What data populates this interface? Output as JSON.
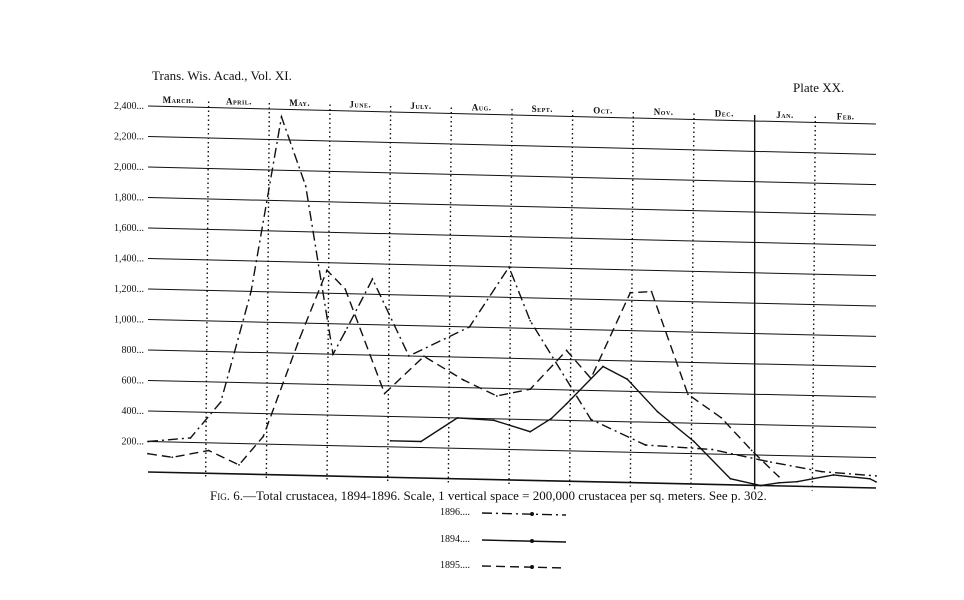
{
  "header": {
    "journal": "Trans. Wis. Acad., Vol. XI.",
    "plate": "Plate XX."
  },
  "caption": {
    "fig_label": "Fig. 6.",
    "text": "—Total crustacea, 1894-1896.  Scale, 1 vertical space = 200,000 crustacea per sq. meters.  See p. 302."
  },
  "legend": [
    {
      "label": "1896....",
      "style": "dash-dot"
    },
    {
      "label": "1894....",
      "style": "solid"
    },
    {
      "label": "1895....",
      "style": "dashed"
    }
  ],
  "chart_data": {
    "type": "line",
    "title": "Total crustacea, 1894-1896.",
    "months": [
      "March.",
      "April.",
      "May.",
      "June.",
      "July.",
      "Aug.",
      "Sept.",
      "Oct.",
      "Nov.",
      "Dec.",
      "Jan.",
      "Feb."
    ],
    "y_ticks": [
      "2,400",
      "2,200",
      "2,000",
      "1,800",
      "1,600",
      "1,400",
      "1,200",
      "1,000",
      "800",
      "600",
      "400",
      "200"
    ],
    "ylim": [
      0,
      2400
    ],
    "x_range": [
      0,
      12
    ],
    "grid": true,
    "series": [
      {
        "name": "1896",
        "style": "dash-dot",
        "x": [
          0.0,
          0.7,
          1.2,
          1.7,
          2.2,
          2.6,
          3.05,
          3.25,
          3.7,
          4.3,
          5.3,
          5.95,
          6.3,
          7.3,
          8.2,
          9.3,
          10.2,
          11.1,
          12.0
        ],
        "values": [
          200,
          230,
          470,
          1200,
          2350,
          1900,
          800,
          950,
          1300,
          800,
          1000,
          1400,
          1050,
          410,
          250,
          230,
          160,
          100,
          80
        ]
      },
      {
        "name": "1894",
        "style": "solid",
        "x": [
          4.0,
          4.5,
          5.1,
          5.7,
          6.3,
          6.65,
          6.9,
          7.5,
          7.9,
          8.4,
          9.0,
          9.6,
          10.1,
          10.4,
          10.7,
          11.3,
          11.9,
          12.0
        ],
        "values": [
          240,
          240,
          400,
          390,
          320,
          410,
          510,
          760,
          680,
          470,
          280,
          40,
          0,
          20,
          30,
          80,
          60,
          40
        ]
      },
      {
        "name": "1895",
        "style": "dashed",
        "x": [
          0.0,
          0.4,
          1.0,
          1.5,
          1.9,
          2.5,
          2.95,
          3.25,
          3.9,
          4.55,
          5.2,
          5.75,
          6.3,
          6.9,
          7.3,
          7.95,
          8.3,
          8.9,
          9.45,
          9.95,
          10.4
        ],
        "values": [
          120,
          100,
          150,
          60,
          250,
          900,
          1350,
          1230,
          550,
          800,
          650,
          550,
          600,
          860,
          680,
          1250,
          1260,
          590,
          440,
          230,
          60
        ]
      }
    ]
  }
}
